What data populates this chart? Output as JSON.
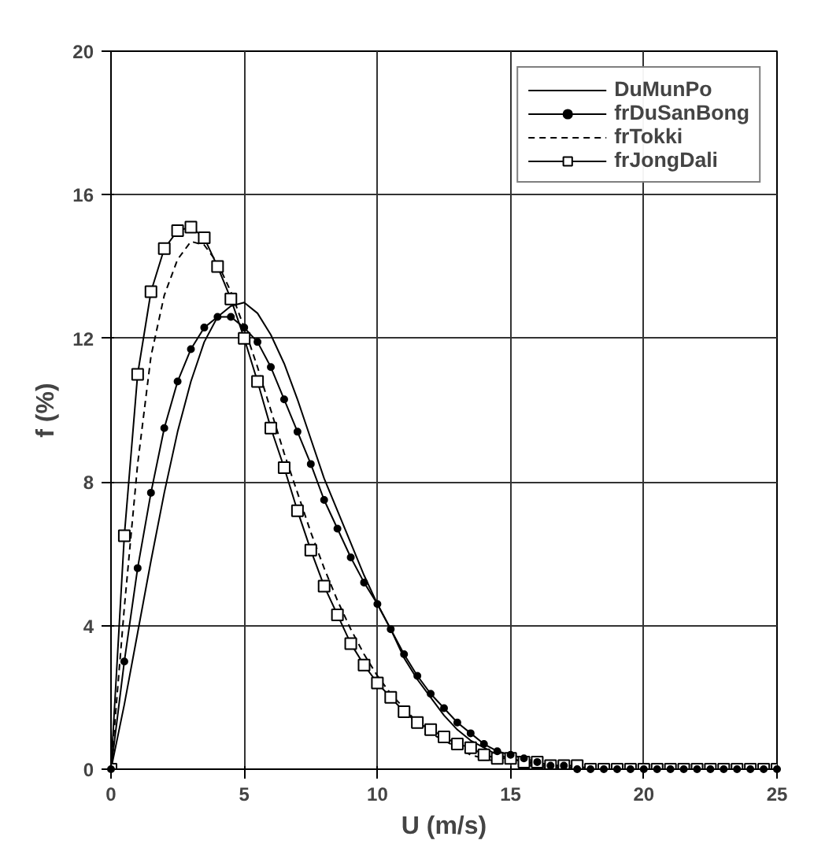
{
  "chart_data": {
    "type": "line",
    "xlabel": "U (m/s)",
    "ylabel": "f (%)",
    "x": [
      0,
      0.5,
      1,
      1.5,
      2,
      2.5,
      3,
      3.5,
      4,
      4.5,
      5,
      5.5,
      6,
      6.5,
      7,
      7.5,
      8,
      8.5,
      9,
      9.5,
      10,
      10.5,
      11,
      11.5,
      12,
      12.5,
      13,
      13.5,
      14,
      14.5,
      15,
      15.5,
      16,
      16.5,
      17,
      17.5,
      18,
      18.5,
      19,
      19.5,
      20,
      20.5,
      21,
      21.5,
      22,
      22.5,
      23,
      23.5,
      24,
      24.5,
      25
    ],
    "series": [
      {
        "name": "DuMunPo",
        "color": "#000000",
        "marker": "none",
        "line_style": "solid",
        "values": [
          0,
          1.8,
          3.8,
          5.8,
          7.7,
          9.4,
          10.8,
          11.9,
          12.6,
          12.9,
          13.0,
          12.7,
          12.1,
          11.3,
          10.3,
          9.2,
          8.1,
          7.2,
          6.3,
          5.4,
          4.6,
          3.9,
          3.1,
          2.5,
          2.0,
          1.5,
          1.1,
          0.8,
          0.6,
          0.4,
          0.3,
          0.2,
          0.1,
          0.1,
          0,
          0,
          0,
          0,
          0,
          0,
          0,
          0,
          0,
          0,
          0,
          0,
          0,
          0,
          0,
          0,
          0
        ]
      },
      {
        "name": "frDuSanBong",
        "color": "#000000",
        "marker": "circle",
        "line_style": "solid",
        "values": [
          0,
          3.0,
          5.6,
          7.7,
          9.5,
          10.8,
          11.7,
          12.3,
          12.6,
          12.6,
          12.3,
          11.9,
          11.2,
          10.3,
          9.4,
          8.5,
          7.5,
          6.7,
          5.9,
          5.2,
          4.6,
          3.9,
          3.2,
          2.6,
          2.1,
          1.7,
          1.3,
          1.0,
          0.7,
          0.5,
          0.4,
          0.3,
          0.2,
          0.1,
          0.1,
          0,
          0,
          0,
          0,
          0,
          0,
          0,
          0,
          0,
          0,
          0,
          0,
          0,
          0,
          0,
          0
        ]
      },
      {
        "name": "frTokki",
        "color": "#000000",
        "marker": "none",
        "line_style": "dashed",
        "values": [
          0,
          4.5,
          8.5,
          11.5,
          13.2,
          14.2,
          14.7,
          14.6,
          14.1,
          13.3,
          12.3,
          11.2,
          10.0,
          8.8,
          7.7,
          6.6,
          5.6,
          4.7,
          3.9,
          3.2,
          2.6,
          2.1,
          1.7,
          1.3,
          1.0,
          0.8,
          0.6,
          0.4,
          0.3,
          0.2,
          0.2,
          0.1,
          0.1,
          0,
          0,
          0,
          0,
          0,
          0,
          0,
          0,
          0,
          0,
          0,
          0,
          0,
          0,
          0,
          0,
          0,
          0
        ]
      },
      {
        "name": "frJongDali",
        "color": "#000000",
        "marker": "square",
        "line_style": "solid",
        "values": [
          0,
          6.5,
          11.0,
          13.3,
          14.5,
          15.0,
          15.1,
          14.8,
          14.0,
          13.1,
          12.0,
          10.8,
          9.5,
          8.4,
          7.2,
          6.1,
          5.1,
          4.3,
          3.5,
          2.9,
          2.4,
          2.0,
          1.6,
          1.3,
          1.1,
          0.9,
          0.7,
          0.6,
          0.4,
          0.3,
          0.3,
          0.2,
          0.2,
          0.1,
          0.1,
          0.1,
          0,
          0,
          0,
          0,
          0,
          0,
          0,
          0,
          0,
          0,
          0,
          0,
          0,
          0,
          0
        ]
      }
    ],
    "xlim": [
      0,
      25
    ],
    "xticks": [
      0,
      5,
      10,
      15,
      20,
      25
    ],
    "ylim": [
      0,
      20
    ],
    "yticks": [
      0,
      4,
      8,
      12,
      16,
      20
    ],
    "grid": true,
    "legend": "top right"
  }
}
